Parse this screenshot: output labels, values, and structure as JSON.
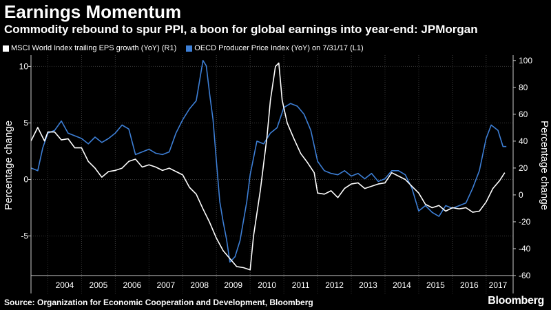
{
  "header": {
    "title": "Earnings Momentum",
    "subtitle": "Commodity rebound to spur PPI, a boon for global earnings into year-end: JPMorgan"
  },
  "footer": {
    "source": "Source: Organization for Economic Cooperation and Development, Bloomberg",
    "brand": "Bloomberg"
  },
  "chart_data": {
    "type": "line",
    "ylabel_left": "Percentage change",
    "ylabel_right": "Percentage change",
    "ylim_left": [
      -8.5,
      11
    ],
    "ylim_right": [
      -60,
      104
    ],
    "yticks_left": [
      -5,
      0,
      5,
      10
    ],
    "yticks_right": [
      -60,
      -40,
      -20,
      0,
      20,
      40,
      60,
      80,
      100
    ],
    "xlim": [
      2003.5,
      2017.8
    ],
    "xticks": [
      "2004",
      "2005",
      "2006",
      "2007",
      "2008",
      "2009",
      "2010",
      "2011",
      "2012",
      "2013",
      "2014",
      "2015",
      "2016",
      "2017"
    ],
    "grid": true,
    "legend_position": "top-left",
    "colors": {
      "background": "#000000",
      "grid": "#3a3a3a",
      "eps": "#ffffff",
      "ppi": "#3d7fd6"
    },
    "series": [
      {
        "name": "MSCI World Index trailing EPS growth (YoY) (R1)",
        "axis": "left",
        "color": "#ffffff",
        "points": [
          [
            2003.5,
            3.4
          ],
          [
            2003.7,
            4.6
          ],
          [
            2003.9,
            3.4
          ],
          [
            2004.0,
            4.2
          ],
          [
            2004.2,
            4.2
          ],
          [
            2004.4,
            3.5
          ],
          [
            2004.6,
            3.6
          ],
          [
            2004.8,
            2.8
          ],
          [
            2005.0,
            2.8
          ],
          [
            2005.2,
            1.6
          ],
          [
            2005.4,
            1.0
          ],
          [
            2005.6,
            0.2
          ],
          [
            2005.8,
            0.7
          ],
          [
            2006.0,
            0.8
          ],
          [
            2006.2,
            1.0
          ],
          [
            2006.4,
            1.6
          ],
          [
            2006.6,
            1.8
          ],
          [
            2006.8,
            1.1
          ],
          [
            2007.0,
            1.3
          ],
          [
            2007.2,
            1.1
          ],
          [
            2007.4,
            0.8
          ],
          [
            2007.6,
            1.0
          ],
          [
            2007.8,
            0.7
          ],
          [
            2008.0,
            0.4
          ],
          [
            2008.2,
            -0.7
          ],
          [
            2008.4,
            -1.3
          ],
          [
            2008.6,
            -2.6
          ],
          [
            2008.8,
            -3.8
          ],
          [
            2009.0,
            -5.2
          ],
          [
            2009.2,
            -6.3
          ],
          [
            2009.4,
            -7.0
          ],
          [
            2009.6,
            -7.7
          ],
          [
            2009.8,
            -7.8
          ],
          [
            2010.0,
            -8.0
          ],
          [
            2010.1,
            -5.0
          ],
          [
            2010.3,
            -1.0
          ],
          [
            2010.5,
            3.8
          ],
          [
            2010.6,
            7.0
          ],
          [
            2010.75,
            10.0
          ],
          [
            2010.85,
            10.3
          ],
          [
            2010.95,
            7.0
          ],
          [
            2011.1,
            5.0
          ],
          [
            2011.3,
            3.6
          ],
          [
            2011.5,
            2.3
          ],
          [
            2011.7,
            1.5
          ],
          [
            2011.9,
            0.6
          ],
          [
            2012.0,
            -1.2
          ],
          [
            2012.2,
            -1.3
          ],
          [
            2012.4,
            -1.0
          ],
          [
            2012.6,
            -1.6
          ],
          [
            2012.8,
            -0.8
          ],
          [
            2013.0,
            -0.4
          ],
          [
            2013.2,
            -0.3
          ],
          [
            2013.4,
            -0.8
          ],
          [
            2013.6,
            -0.6
          ],
          [
            2013.8,
            -0.4
          ],
          [
            2014.0,
            -0.3
          ],
          [
            2014.2,
            0.6
          ],
          [
            2014.4,
            0.3
          ],
          [
            2014.6,
            0.0
          ],
          [
            2014.8,
            -0.6
          ],
          [
            2015.0,
            -1.2
          ],
          [
            2015.2,
            -2.2
          ],
          [
            2015.4,
            -2.5
          ],
          [
            2015.6,
            -2.3
          ],
          [
            2015.8,
            -2.8
          ],
          [
            2016.0,
            -2.5
          ],
          [
            2016.2,
            -2.6
          ],
          [
            2016.4,
            -2.5
          ],
          [
            2016.6,
            -2.9
          ],
          [
            2016.8,
            -2.8
          ],
          [
            2017.0,
            -2.0
          ],
          [
            2017.2,
            -0.8
          ],
          [
            2017.4,
            -0.1
          ],
          [
            2017.55,
            0.6
          ]
        ]
      },
      {
        "name": "OECD Producer Price Index (YoY) on 7/31/17 (L1)",
        "axis": "right",
        "color": "#3d7fd6",
        "points": [
          [
            2003.5,
            20
          ],
          [
            2003.7,
            18
          ],
          [
            2003.85,
            35
          ],
          [
            2004.0,
            46
          ],
          [
            2004.2,
            48
          ],
          [
            2004.4,
            55
          ],
          [
            2004.6,
            46
          ],
          [
            2004.8,
            44
          ],
          [
            2005.0,
            42
          ],
          [
            2005.2,
            38
          ],
          [
            2005.4,
            43
          ],
          [
            2005.6,
            39
          ],
          [
            2005.8,
            42
          ],
          [
            2006.0,
            46
          ],
          [
            2006.2,
            52
          ],
          [
            2006.4,
            49
          ],
          [
            2006.6,
            30
          ],
          [
            2006.8,
            32
          ],
          [
            2007.0,
            34
          ],
          [
            2007.2,
            31
          ],
          [
            2007.4,
            30
          ],
          [
            2007.6,
            32
          ],
          [
            2007.8,
            46
          ],
          [
            2008.0,
            56
          ],
          [
            2008.2,
            64
          ],
          [
            2008.4,
            70
          ],
          [
            2008.6,
            100
          ],
          [
            2008.7,
            96
          ],
          [
            2008.8,
            75
          ],
          [
            2008.9,
            56
          ],
          [
            2009.0,
            25
          ],
          [
            2009.1,
            -5
          ],
          [
            2009.2,
            -20
          ],
          [
            2009.3,
            -33
          ],
          [
            2009.4,
            -50
          ],
          [
            2009.55,
            -46
          ],
          [
            2009.7,
            -34
          ],
          [
            2009.9,
            -5
          ],
          [
            2010.0,
            15
          ],
          [
            2010.2,
            40
          ],
          [
            2010.4,
            38
          ],
          [
            2010.6,
            46
          ],
          [
            2010.8,
            50
          ],
          [
            2011.0,
            65
          ],
          [
            2011.2,
            68
          ],
          [
            2011.4,
            66
          ],
          [
            2011.6,
            60
          ],
          [
            2011.8,
            48
          ],
          [
            2012.0,
            25
          ],
          [
            2012.2,
            18
          ],
          [
            2012.4,
            16
          ],
          [
            2012.6,
            15
          ],
          [
            2012.8,
            18
          ],
          [
            2013.0,
            14
          ],
          [
            2013.2,
            16
          ],
          [
            2013.4,
            12
          ],
          [
            2013.6,
            16
          ],
          [
            2013.8,
            10
          ],
          [
            2014.0,
            12
          ],
          [
            2014.2,
            18
          ],
          [
            2014.4,
            18
          ],
          [
            2014.6,
            15
          ],
          [
            2014.8,
            5
          ],
          [
            2015.0,
            -12
          ],
          [
            2015.2,
            -8
          ],
          [
            2015.4,
            -13
          ],
          [
            2015.6,
            -16
          ],
          [
            2015.8,
            -8
          ],
          [
            2016.0,
            -10
          ],
          [
            2016.2,
            -8
          ],
          [
            2016.4,
            -6
          ],
          [
            2016.6,
            5
          ],
          [
            2016.8,
            18
          ],
          [
            2017.0,
            42
          ],
          [
            2017.15,
            52
          ],
          [
            2017.35,
            48
          ],
          [
            2017.5,
            36
          ],
          [
            2017.6,
            36
          ]
        ]
      }
    ]
  }
}
